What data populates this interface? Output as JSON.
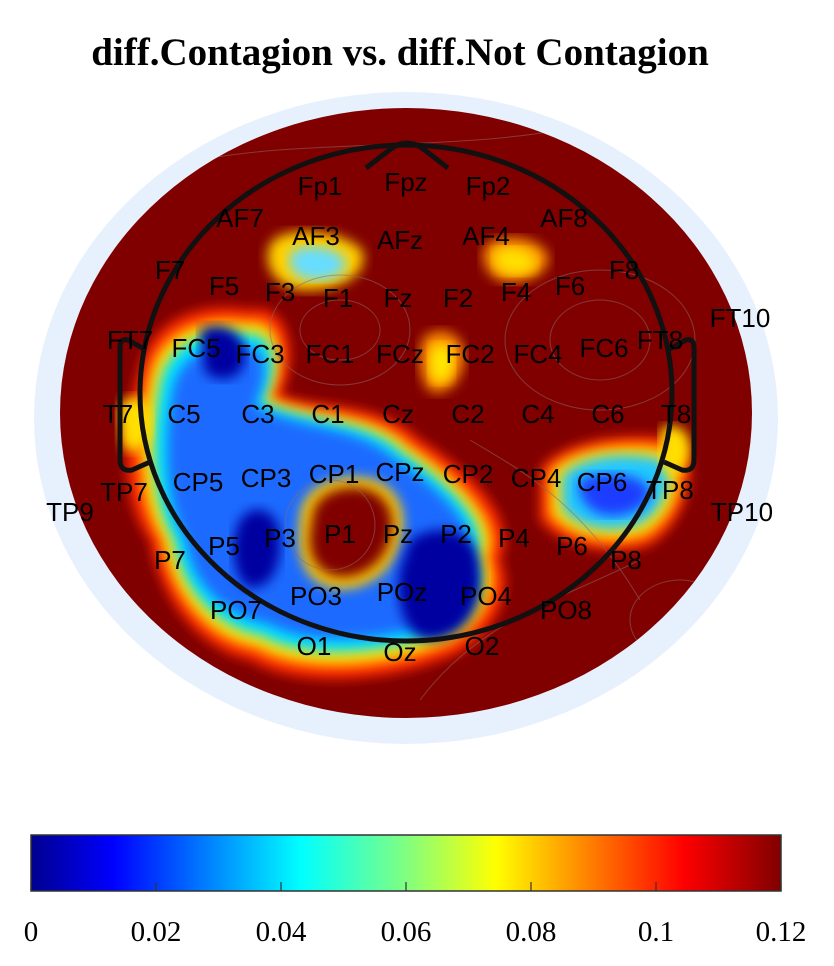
{
  "chart_data": {
    "type": "heatmap",
    "title": "diff.Contagion vs. diff.Not Contagion",
    "colorbar": {
      "range": [
        0,
        0.12
      ],
      "ticks": [
        0,
        0.02,
        0.04,
        0.06,
        0.08,
        0.1,
        0.12
      ],
      "tick_labels": [
        "0",
        "0.02",
        "0.04",
        "0.06",
        "0.08",
        "0.1",
        "0.12"
      ],
      "orientation": "horizontal",
      "placement": "bottom",
      "colormap": "jet"
    },
    "electrodes": [
      "Fp1",
      "Fpz",
      "Fp2",
      "AF7",
      "AF3",
      "AFz",
      "AF4",
      "AF8",
      "F7",
      "F5",
      "F3",
      "F1",
      "Fz",
      "F2",
      "F4",
      "F6",
      "F8",
      "FT7",
      "FC5",
      "FC3",
      "FC1",
      "FCz",
      "FC2",
      "FC4",
      "FC6",
      "FT8",
      "FT10",
      "T7",
      "C5",
      "C3",
      "C1",
      "Cz",
      "C2",
      "C4",
      "C6",
      "T8",
      "TP7",
      "CP5",
      "CP3",
      "CP1",
      "CPz",
      "CP2",
      "CP4",
      "CP6",
      "TP8",
      "TP9",
      "TP10",
      "P7",
      "P5",
      "P3",
      "P1",
      "Pz",
      "P2",
      "P4",
      "P6",
      "P8",
      "PO7",
      "PO3",
      "POz",
      "PO4",
      "PO8",
      "O1",
      "Oz",
      "O2"
    ]
  }
}
